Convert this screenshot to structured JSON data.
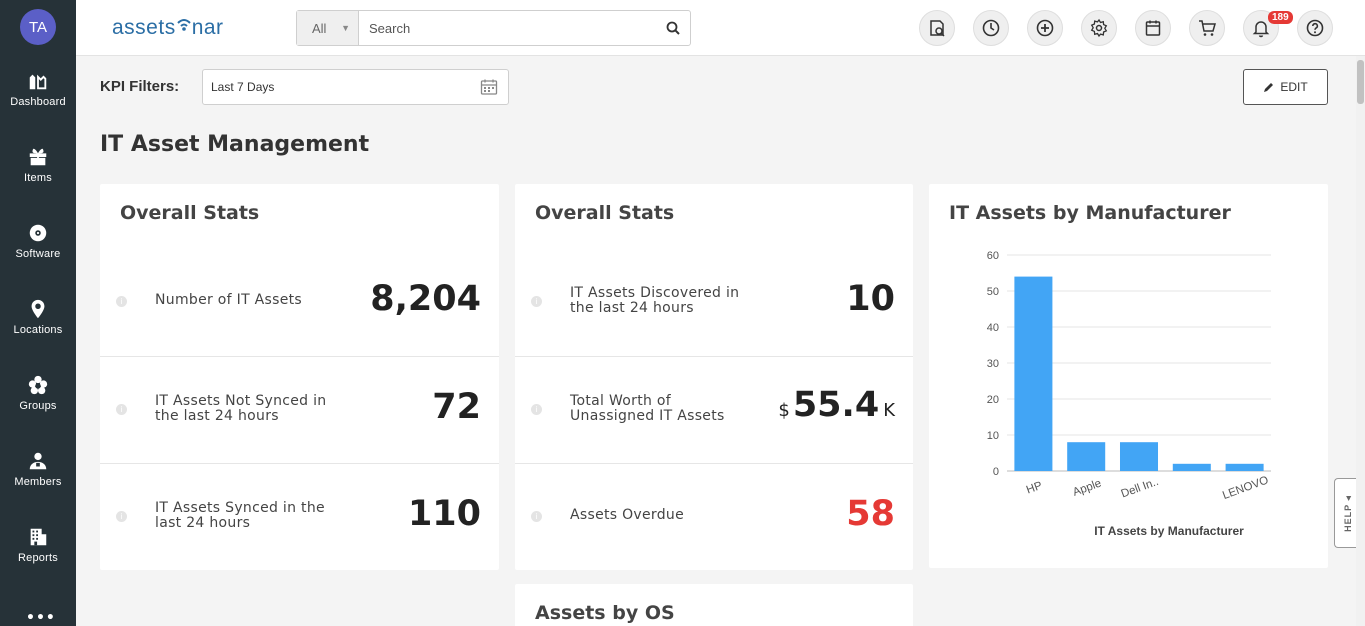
{
  "user": {
    "initials": "TA"
  },
  "sidebar": {
    "items": [
      {
        "label": "Dashboard",
        "icon": "dashboard-icon"
      },
      {
        "label": "Items",
        "icon": "gift-box-icon"
      },
      {
        "label": "Software",
        "icon": "disc-icon"
      },
      {
        "label": "Locations",
        "icon": "map-pin-icon"
      },
      {
        "label": "Groups",
        "icon": "flower-icon"
      },
      {
        "label": "Members",
        "icon": "members-icon"
      },
      {
        "label": "Reports",
        "icon": "building-icon"
      }
    ],
    "more": "•••"
  },
  "header": {
    "logo": {
      "part1": "assets",
      "part2": "nar"
    },
    "search": {
      "filter": "All",
      "placeholder": "Search"
    },
    "icons": [
      "checkout-icon",
      "clock-icon",
      "plus-circle-icon",
      "gear-icon",
      "calendar-icon",
      "cart-icon",
      "bell-icon",
      "help-icon"
    ],
    "notifications": "189"
  },
  "kpi": {
    "label": "KPI Filters:",
    "range": "Last 7 Days",
    "edit_label": "EDIT"
  },
  "page_title": "IT Asset Management",
  "card1": {
    "title": "Overall Stats",
    "rows": [
      {
        "label": "Number of IT Assets",
        "value": "8,204"
      },
      {
        "label": "IT Assets Not Synced in the last 24 hours",
        "value": "72"
      },
      {
        "label": "IT Assets Synced in the last 24 hours",
        "value": "110"
      }
    ]
  },
  "card2": {
    "title": "Overall Stats",
    "rows": [
      {
        "label": "IT Assets Discovered in the last 24 hours",
        "value": "10"
      },
      {
        "label": "Total Worth of Unassigned IT Assets",
        "value": "55.4",
        "prefix": "$",
        "suffix": "K"
      },
      {
        "label": "Assets Overdue",
        "value": "58",
        "color": "#e53935"
      }
    ]
  },
  "card4": {
    "title": "Assets by OS"
  },
  "chart_data": {
    "type": "bar",
    "title": "IT Assets by Manufacturer",
    "xlabel": "IT Assets by Manufacturer",
    "ylabel": "",
    "categories": [
      "HP",
      "Apple",
      "Dell In..",
      "",
      "LENOVO"
    ],
    "values": [
      54,
      8,
      8,
      2,
      2
    ],
    "ylim": [
      0,
      60
    ],
    "yticks": [
      0,
      10,
      20,
      30,
      40,
      50,
      60
    ],
    "bar_color": "#42a5f5",
    "grid": true
  },
  "help_tab": "HELP ◂",
  "colors": {
    "sidebar": "#263238",
    "accent": "#2b6ea5",
    "danger": "#e53935",
    "avatar": "#5b5fc7"
  }
}
